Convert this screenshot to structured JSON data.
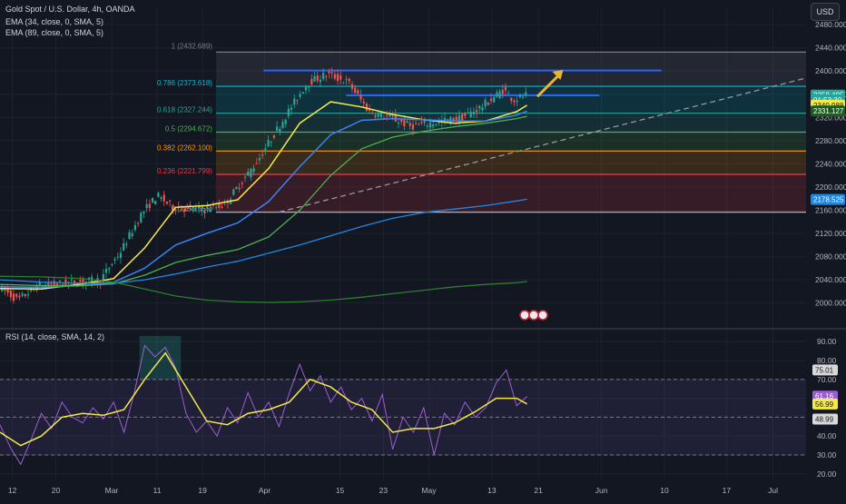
{
  "header": {
    "symbol_line": "Gold Spot / U.S. Dollar, 4h, OANDA",
    "ema1_line": "EMA (34, close, 0, SMA, 5)",
    "ema2_line": "EMA (89, close, 0, SMA, 5)",
    "rsi_line": "RSI (14, close, SMA, 14, 2)",
    "currency_button": "USD"
  },
  "colors": {
    "background": "#131722",
    "grid": "#1e222d",
    "up": "#26a69a",
    "down": "#ef5350",
    "ema34": "#f5e94a",
    "ema89": "#3b82f6",
    "ema_long_a": "#4caf50",
    "ema_long_b": "#1e88e5",
    "rsi": "#9c5fd1",
    "rsi_ma": "#f5e94a",
    "arrow": "#e6b333",
    "resistance": "#2962ff"
  },
  "chart_data": [
    {
      "type": "candlestick",
      "title": "Gold Spot / U.S. Dollar, 4h, OANDA",
      "ylim": [
        1965,
        2510
      ],
      "y_ticks": [
        "2480.000",
        "2440.000",
        "2400.000",
        "2360.000",
        "2320.000",
        "2280.000",
        "2240.000",
        "2200.000",
        "2160.000",
        "2120.000",
        "2080.000",
        "2040.000",
        "2000.000"
      ],
      "x_ticks": [
        "12",
        "20",
        "Mar",
        "11",
        "19",
        "Apr",
        "15",
        "23",
        "May",
        "13",
        "21",
        "Jun",
        "10",
        "17",
        "Jul"
      ],
      "fibonacci": [
        {
          "label": "1 (2432.689)",
          "value": 2432.689,
          "color": "#787b86"
        },
        {
          "label": "0.786 (2373.618)",
          "value": 2373.618,
          "color": "#00bcd4"
        },
        {
          "label": "0.618 (2327.244)",
          "value": 2327.244,
          "color": "#26a69a"
        },
        {
          "label": "0.5 (2294.672)",
          "value": 2294.672,
          "color": "#4caf50"
        },
        {
          "label": "0.382 (2262.100)",
          "value": 2262.1,
          "color": "#ff9800"
        },
        {
          "label": "0.236 (2221.799)",
          "value": 2221.799,
          "color": "#f23645"
        },
        {
          "label": "0 (2156.655)",
          "value": 2156.655,
          "color": "#b2b5be"
        }
      ],
      "price_tags": [
        {
          "text": "2358.495",
          "value": 2358.495,
          "bg": "#26a69a",
          "fg": "#ffffff"
        },
        {
          "text": "01:53:30",
          "value": 2350.5,
          "bg": "#26a69a",
          "fg": "#ffffff"
        },
        {
          "text": "2340.988",
          "value": 2340.988,
          "bg": "#f5e94a",
          "fg": "#131722"
        },
        {
          "text": "2331.127",
          "value": 2331.127,
          "bg": "#1b5e20",
          "fg": "#ffffff"
        },
        {
          "text": "2178.525",
          "value": 2178.525,
          "bg": "#1e88e5",
          "fg": "#ffffff"
        }
      ],
      "resistance_lines": [
        {
          "from_x": 25.5,
          "to_x": 64.0,
          "value": 2401
        },
        {
          "from_x": 33.5,
          "to_x": 58.0,
          "value": 2358
        }
      ],
      "trendline": {
        "from": [
          27.0,
          2156.655
        ],
        "to": [
          78.0,
          2388
        ],
        "style": "dashed"
      },
      "arrow": {
        "from": [
          52.0,
          2356
        ],
        "to": [
          54.5,
          2402
        ]
      },
      "series": [
        {
          "name": "EMA 34",
          "color": "#f5e94a",
          "x": [
            0,
            4,
            8,
            11,
            14,
            17,
            20,
            23,
            26,
            29,
            32,
            35,
            38,
            41,
            44,
            47,
            50,
            51
          ],
          "y": [
            2025,
            2024,
            2033,
            2042,
            2095,
            2165,
            2168,
            2178,
            2232,
            2310,
            2347,
            2338,
            2325,
            2316,
            2310,
            2314,
            2330,
            2341
          ]
        },
        {
          "name": "EMA 89",
          "color": "#3b82f6",
          "x": [
            0,
            4,
            8,
            11,
            14,
            17,
            20,
            23,
            26,
            29,
            32,
            35,
            38,
            41,
            44,
            47,
            50,
            51
          ],
          "y": [
            2028,
            2027,
            2030,
            2036,
            2060,
            2100,
            2120,
            2138,
            2175,
            2235,
            2290,
            2315,
            2318,
            2316,
            2314,
            2314,
            2324,
            2331
          ]
        },
        {
          "name": "EMA long A",
          "color": "#4caf50",
          "x": [
            0,
            4,
            8,
            11,
            14,
            17,
            20,
            23,
            26,
            29,
            32,
            35,
            38,
            41,
            44,
            47,
            50,
            51
          ],
          "y": [
            2032,
            2030,
            2030,
            2033,
            2048,
            2070,
            2082,
            2092,
            2114,
            2160,
            2220,
            2266,
            2286,
            2296,
            2304,
            2310,
            2318,
            2322
          ]
        },
        {
          "name": "EMA long B",
          "color": "#1e88e5",
          "x": [
            0,
            4,
            8,
            11,
            14,
            17,
            20,
            23,
            26,
            29,
            32,
            35,
            38,
            41,
            44,
            47,
            50,
            51
          ],
          "y": [
            2040,
            2036,
            2034,
            2034,
            2040,
            2050,
            2062,
            2072,
            2086,
            2100,
            2116,
            2132,
            2146,
            2156,
            2162,
            2168,
            2176,
            2179
          ]
        },
        {
          "name": "EMA long C",
          "color": "#2e7d32",
          "x": [
            0,
            4,
            8,
            11,
            14,
            17,
            20,
            23,
            26,
            29,
            32,
            35,
            38,
            41,
            44,
            47,
            50,
            51
          ],
          "y": [
            2046,
            2045,
            2042,
            2036,
            2024,
            2012,
            2005,
            2002,
            2001,
            2002,
            2005,
            2010,
            2016,
            2022,
            2028,
            2032,
            2035,
            2037
          ]
        }
      ]
    },
    {
      "type": "line",
      "title": "RSI (14, close, SMA, 14, 2)",
      "ylim": [
        17,
        93
      ],
      "y_ticks": [
        "90.00",
        "80.00",
        "70.00",
        "60.00",
        "50.00",
        "40.00",
        "30.00",
        "20.00"
      ],
      "bands": {
        "upper": 70,
        "middle": 50,
        "lower": 30
      },
      "value_tags": [
        {
          "text": "75.01",
          "value": 75.01,
          "bg": "#d8d8d8",
          "fg": "#131722"
        },
        {
          "text": "61.16",
          "value": 61.16,
          "bg": "#9c5fd1",
          "fg": "#ffffff"
        },
        {
          "text": "56.99",
          "value": 56.99,
          "bg": "#f5e94a",
          "fg": "#131722"
        },
        {
          "text": "48.99",
          "value": 48.99,
          "bg": "#d8d8d8",
          "fg": "#131722"
        }
      ],
      "series": [
        {
          "name": "RSI",
          "color": "#9c5fd1",
          "x": [
            0,
            1,
            2,
            3,
            4,
            5,
            6,
            7,
            8,
            9,
            10,
            11,
            12,
            13,
            14,
            15,
            16,
            17,
            18,
            19,
            20,
            21,
            22,
            23,
            24,
            25,
            26,
            27,
            28,
            29,
            30,
            31,
            32,
            33,
            34,
            35,
            36,
            37,
            38,
            39,
            40,
            41,
            42,
            43,
            44,
            45,
            46,
            47,
            48,
            49,
            50,
            51
          ],
          "y": [
            46,
            34,
            25,
            38,
            52,
            44,
            58,
            50,
            47,
            55,
            49,
            58,
            42,
            63,
            88,
            82,
            87,
            76,
            52,
            42,
            48,
            40,
            55,
            47,
            63,
            50,
            58,
            45,
            63,
            78,
            64,
            72,
            58,
            66,
            54,
            60,
            48,
            62,
            33,
            50,
            42,
            55,
            30,
            52,
            46,
            58,
            50,
            55,
            68,
            75,
            56,
            61
          ]
        },
        {
          "name": "RSI MA",
          "color": "#f5e94a",
          "x": [
            0,
            2,
            4,
            6,
            8,
            10,
            12,
            14,
            16,
            18,
            20,
            22,
            24,
            26,
            28,
            30,
            32,
            34,
            36,
            38,
            40,
            42,
            44,
            46,
            48,
            50,
            51
          ],
          "y": [
            42,
            35,
            40,
            50,
            52,
            51,
            54,
            70,
            84,
            66,
            48,
            46,
            52,
            54,
            58,
            70,
            66,
            58,
            54,
            42,
            44,
            44,
            47,
            53,
            60,
            60,
            57
          ]
        }
      ]
    }
  ]
}
